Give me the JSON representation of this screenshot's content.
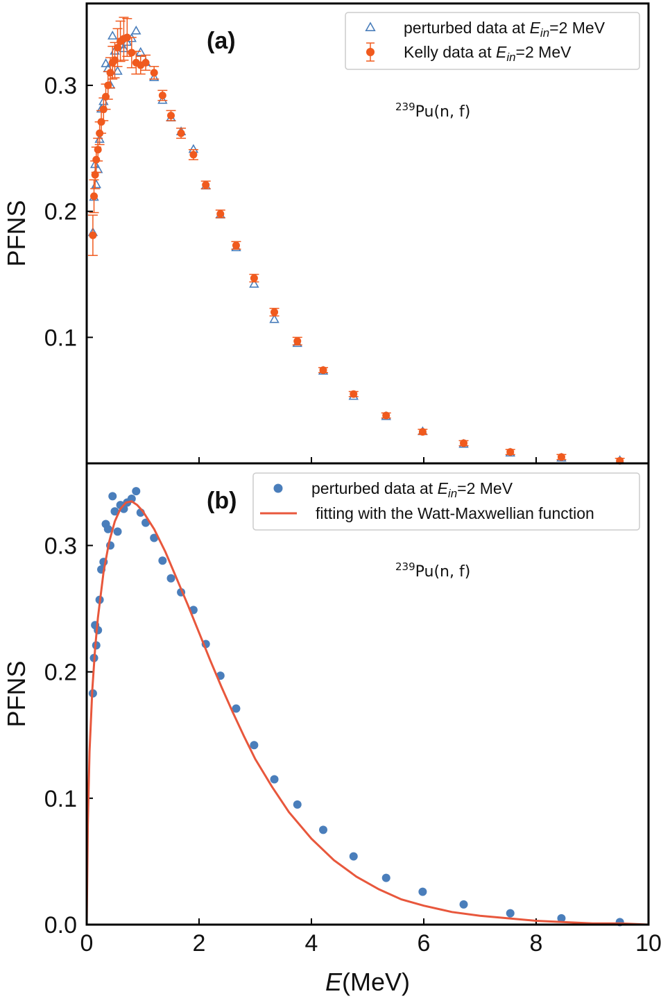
{
  "colors": {
    "perturbed": "#4a7ebb",
    "kelly": "#f05a1e",
    "fit": "#e8573c",
    "frame": "#000000"
  },
  "chart_data": [
    {
      "type": "scatter",
      "panel_label": "(a)",
      "annotation": {
        "sup": "239",
        "text": "Pu(n, f)"
      },
      "xlabel": "",
      "ylabel": "PFNS",
      "xlim": [
        0,
        10
      ],
      "ylim": [
        0.0,
        0.365
      ],
      "yticks": [
        "0.1",
        "0.2",
        "0.3"
      ],
      "xticks": [
        "0",
        "2",
        "4",
        "6",
        "8",
        "10"
      ],
      "x_tick_labels_shown": false,
      "legend_position": "top-right",
      "legend": [
        {
          "marker": "triangle-open",
          "text": "perturbed data at ",
          "sym": "E",
          "sub": "in",
          "suffix": "=2 MeV"
        },
        {
          "marker": "circle-errorbar",
          "text": "Kelly data at ",
          "sym": "E",
          "sub": "in",
          "suffix": "=2 MeV"
        }
      ],
      "series": [
        {
          "name": "perturbed data at E_in=2 MeV",
          "marker": "triangle-open",
          "x": [
            0.11,
            0.13,
            0.15,
            0.17,
            0.2,
            0.23,
            0.26,
            0.3,
            0.34,
            0.38,
            0.42,
            0.46,
            0.5,
            0.55,
            0.6,
            0.66,
            0.72,
            0.8,
            0.88,
            0.96,
            1.05,
            1.2,
            1.35,
            1.5,
            1.68,
            1.9,
            2.12,
            2.38,
            2.66,
            2.98,
            3.34,
            3.75,
            4.21,
            4.75,
            5.33,
            5.98,
            6.71,
            7.54,
            8.45,
            9.49
          ],
          "y": [
            0.183,
            0.211,
            0.237,
            0.221,
            0.233,
            0.257,
            0.281,
            0.287,
            0.317,
            0.313,
            0.3,
            0.339,
            0.327,
            0.311,
            0.332,
            0.329,
            0.334,
            0.337,
            0.343,
            0.326,
            0.318,
            0.306,
            0.288,
            0.274,
            0.263,
            0.249,
            0.22,
            0.197,
            0.171,
            0.142,
            0.114,
            0.095,
            0.073,
            0.053,
            0.037,
            0.025,
            0.015,
            0.008,
            0.004,
            0.002
          ]
        },
        {
          "name": "Kelly data at E_in=2 MeV",
          "marker": "circle-errorbar",
          "x": [
            0.11,
            0.13,
            0.15,
            0.17,
            0.2,
            0.23,
            0.26,
            0.3,
            0.34,
            0.38,
            0.42,
            0.46,
            0.5,
            0.55,
            0.6,
            0.66,
            0.72,
            0.8,
            0.88,
            0.96,
            1.05,
            1.2,
            1.35,
            1.5,
            1.68,
            1.9,
            2.12,
            2.38,
            2.66,
            2.98,
            3.34,
            3.75,
            4.21,
            4.75,
            5.33,
            5.98,
            6.71,
            7.54,
            8.45,
            9.49
          ],
          "y": [
            0.181,
            0.212,
            0.229,
            0.241,
            0.249,
            0.262,
            0.271,
            0.281,
            0.291,
            0.3,
            0.31,
            0.318,
            0.32,
            0.33,
            0.335,
            0.337,
            0.338,
            0.326,
            0.318,
            0.316,
            0.318,
            0.31,
            0.292,
            0.276,
            0.262,
            0.245,
            0.221,
            0.198,
            0.173,
            0.147,
            0.12,
            0.097,
            0.074,
            0.055,
            0.038,
            0.025,
            0.016,
            0.009,
            0.005,
            0.002
          ],
          "err": [
            0.016,
            0.013,
            0.011,
            0.01,
            0.009,
            0.009,
            0.009,
            0.009,
            0.01,
            0.011,
            0.012,
            0.013,
            0.014,
            0.015,
            0.016,
            0.017,
            0.015,
            0.012,
            0.009,
            0.007,
            0.006,
            0.005,
            0.004,
            0.004,
            0.004,
            0.004,
            0.003,
            0.003,
            0.003,
            0.003,
            0.003,
            0.003,
            0.002,
            0.002,
            0.002,
            0.002,
            0.002,
            0.002,
            0.002,
            0.002
          ]
        }
      ]
    },
    {
      "type": "scatter",
      "panel_label": "(b)",
      "annotation": {
        "sup": "239",
        "text": "Pu(n, f)"
      },
      "xlabel": "E(MeV)",
      "xlabel_parts": {
        "sym": "E",
        "rest": "(MeV)"
      },
      "ylabel": "PFNS",
      "xlim": [
        0,
        10
      ],
      "ylim": [
        0.0,
        0.365
      ],
      "yticks": [
        "0.0",
        "0.1",
        "0.2",
        "0.3"
      ],
      "xticks": [
        "0",
        "2",
        "4",
        "6",
        "8",
        "10"
      ],
      "legend_position": "top-right",
      "legend": [
        {
          "marker": "circle",
          "text": "perturbed data at ",
          "sym": "E",
          "sub": "in",
          "suffix": "=2 MeV"
        },
        {
          "marker": "line",
          "text": "fitting with the Watt-Maxwellian function"
        }
      ],
      "series": [
        {
          "name": "perturbed data at E_in=2 MeV",
          "marker": "circle",
          "x": [
            0.11,
            0.13,
            0.15,
            0.17,
            0.2,
            0.23,
            0.26,
            0.3,
            0.34,
            0.38,
            0.42,
            0.46,
            0.5,
            0.55,
            0.6,
            0.66,
            0.72,
            0.8,
            0.88,
            0.96,
            1.05,
            1.2,
            1.35,
            1.5,
            1.68,
            1.9,
            2.12,
            2.38,
            2.66,
            2.98,
            3.34,
            3.75,
            4.21,
            4.75,
            5.33,
            5.98,
            6.71,
            7.54,
            8.45,
            9.49
          ],
          "y": [
            0.183,
            0.211,
            0.237,
            0.221,
            0.233,
            0.257,
            0.281,
            0.287,
            0.317,
            0.313,
            0.3,
            0.339,
            0.327,
            0.311,
            0.332,
            0.329,
            0.334,
            0.337,
            0.343,
            0.326,
            0.318,
            0.306,
            0.288,
            0.274,
            0.263,
            0.249,
            0.222,
            0.197,
            0.171,
            0.142,
            0.115,
            0.095,
            0.075,
            0.054,
            0.037,
            0.026,
            0.016,
            0.009,
            0.005,
            0.002
          ]
        },
        {
          "name": "fitting with the Watt-Maxwellian function",
          "type": "line",
          "x": [
            0.0,
            0.02,
            0.05,
            0.1,
            0.15,
            0.2,
            0.3,
            0.4,
            0.5,
            0.6,
            0.7,
            0.8,
            0.9,
            1.0,
            1.2,
            1.4,
            1.6,
            1.8,
            2.0,
            2.2,
            2.4,
            2.6,
            2.8,
            3.0,
            3.3,
            3.6,
            4.0,
            4.4,
            4.8,
            5.2,
            5.6,
            6.0,
            6.5,
            7.0,
            7.5,
            8.0,
            8.5,
            9.0,
            9.5,
            10.0
          ],
          "y": [
            0.0,
            0.079,
            0.137,
            0.186,
            0.219,
            0.243,
            0.279,
            0.303,
            0.319,
            0.329,
            0.334,
            0.335,
            0.332,
            0.327,
            0.313,
            0.295,
            0.274,
            0.253,
            0.231,
            0.209,
            0.188,
            0.168,
            0.149,
            0.131,
            0.109,
            0.089,
            0.068,
            0.051,
            0.038,
            0.028,
            0.02,
            0.015,
            0.01,
            0.007,
            0.005,
            0.003,
            0.002,
            0.001,
            0.001,
            0.0
          ]
        }
      ]
    }
  ]
}
